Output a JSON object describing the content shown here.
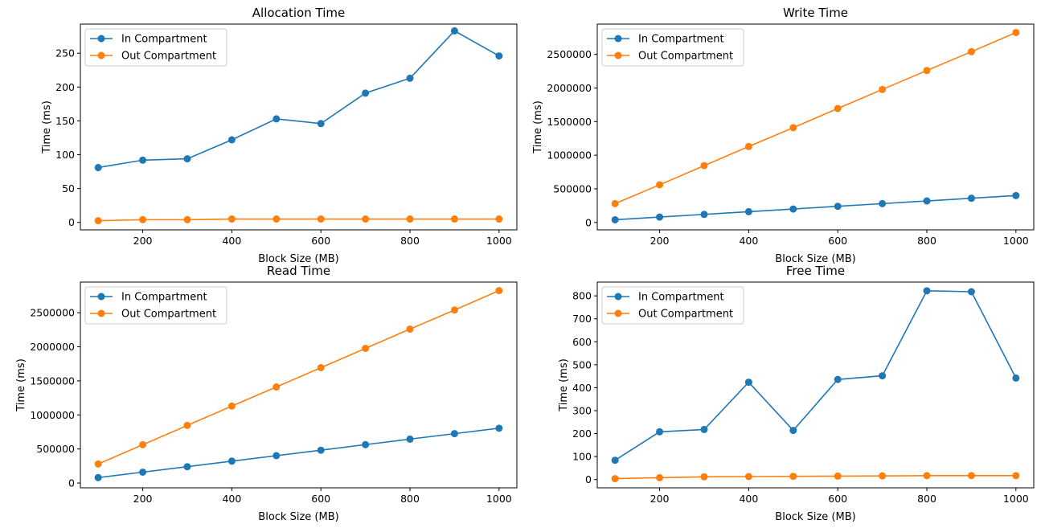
{
  "chart_data": [
    {
      "type": "line",
      "title": "Allocation Time",
      "xlabel": "Block Size (MB)",
      "ylabel": "Time (ms)",
      "x": [
        100,
        200,
        300,
        400,
        500,
        600,
        700,
        800,
        900,
        1000
      ],
      "xlim": [
        60,
        1040
      ],
      "ylim": [
        -11,
        293
      ],
      "xticks": [
        200,
        400,
        600,
        800,
        1000
      ],
      "yticks": [
        0,
        50,
        100,
        150,
        200,
        250
      ],
      "grid": false,
      "legend": "top-left",
      "series": [
        {
          "name": "In Compartment",
          "color": "#1f77b4",
          "values": [
            81,
            92,
            94,
            122,
            153,
            146,
            191,
            213,
            283,
            246
          ]
        },
        {
          "name": "Out Compartment",
          "color": "#ff7f0e",
          "values": [
            2.5,
            4,
            4,
            5,
            5,
            5,
            5,
            5,
            5,
            5
          ]
        }
      ]
    },
    {
      "type": "line",
      "title": "Write Time",
      "xlabel": "Block Size (MB)",
      "ylabel": "Time (ms)",
      "x": [
        100,
        200,
        300,
        400,
        500,
        600,
        700,
        800,
        900,
        1000
      ],
      "xlim": [
        60,
        1040
      ],
      "ylim": [
        -110000,
        2950000
      ],
      "xticks": [
        200,
        400,
        600,
        800,
        1000
      ],
      "yticks": [
        0,
        500000,
        1000000,
        1500000,
        2000000,
        2500000
      ],
      "grid": false,
      "legend": "top-left",
      "series": [
        {
          "name": "In Compartment",
          "color": "#1f77b4",
          "values": [
            40000,
            80000,
            120000,
            160000,
            200000,
            240000,
            280000,
            320000,
            360000,
            400000
          ]
        },
        {
          "name": "Out Compartment",
          "color": "#ff7f0e",
          "values": [
            280000,
            560000,
            845000,
            1130000,
            1410000,
            1695000,
            1978000,
            2260000,
            2540000,
            2825000
          ]
        }
      ]
    },
    {
      "type": "line",
      "title": "Read Time",
      "xlabel": "Block Size (MB)",
      "ylabel": "Time (ms)",
      "x": [
        100,
        200,
        300,
        400,
        500,
        600,
        700,
        800,
        900,
        1000
      ],
      "xlim": [
        60,
        1040
      ],
      "ylim": [
        -70000,
        2950000
      ],
      "xticks": [
        200,
        400,
        600,
        800,
        1000
      ],
      "yticks": [
        0,
        500000,
        1000000,
        1500000,
        2000000,
        2500000
      ],
      "grid": false,
      "legend": "top-left",
      "series": [
        {
          "name": "In Compartment",
          "color": "#1f77b4",
          "values": [
            80000,
            160000,
            240000,
            322000,
            402000,
            482000,
            564000,
            645000,
            725000,
            805000
          ]
        },
        {
          "name": "Out Compartment",
          "color": "#ff7f0e",
          "values": [
            280000,
            563000,
            846000,
            1130000,
            1410000,
            1694000,
            1977000,
            2260000,
            2540000,
            2825000
          ]
        }
      ]
    },
    {
      "type": "line",
      "title": "Free Time",
      "xlabel": "Block Size (MB)",
      "ylabel": "Time (ms)",
      "x": [
        100,
        200,
        300,
        400,
        500,
        600,
        700,
        800,
        900,
        1000
      ],
      "xlim": [
        60,
        1040
      ],
      "ylim": [
        -36,
        860
      ],
      "xticks": [
        200,
        400,
        600,
        800,
        1000
      ],
      "yticks": [
        0,
        100,
        200,
        300,
        400,
        500,
        600,
        700,
        800
      ],
      "grid": false,
      "legend": "top-left",
      "series": [
        {
          "name": "In Compartment",
          "color": "#1f77b4",
          "values": [
            84,
            208,
            218,
            424,
            214,
            436,
            452,
            822,
            818,
            442
          ]
        },
        {
          "name": "Out Compartment",
          "color": "#ff7f0e",
          "values": [
            4,
            8,
            12,
            13,
            14,
            15,
            16,
            17,
            17,
            17
          ]
        }
      ]
    }
  ]
}
